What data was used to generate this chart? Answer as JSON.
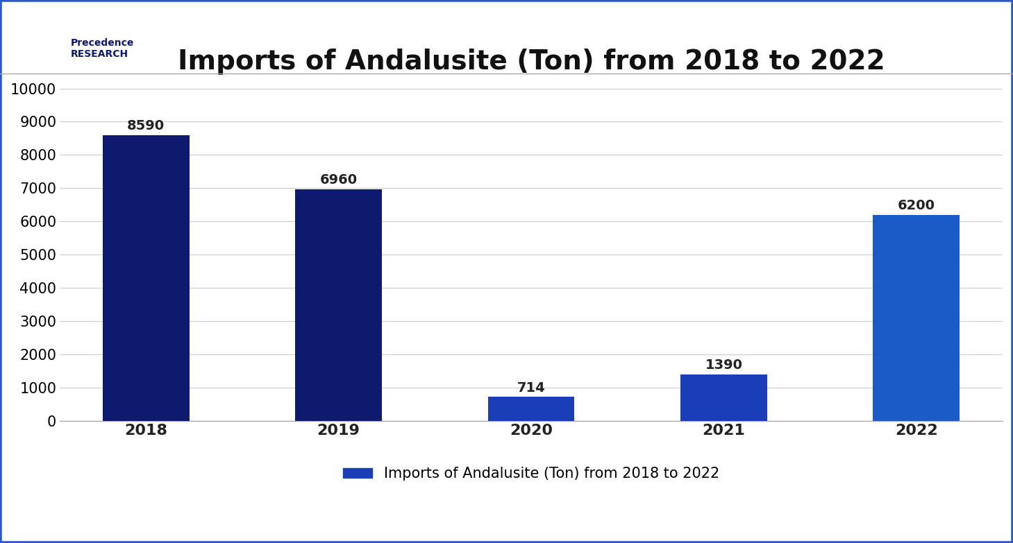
{
  "title": "Imports of Andalusite (Ton) from 2018 to 2022",
  "categories": [
    "2018",
    "2019",
    "2020",
    "2021",
    "2022"
  ],
  "values": [
    8590,
    6960,
    714,
    1390,
    6200
  ],
  "bar_colors": [
    "#0d1a6e",
    "#0d1a6e",
    "#1a3eb8",
    "#1a3eb8",
    "#1a5bc8"
  ],
  "bar_colors_detail": {
    "2018": "#0d1a6e",
    "2019": "#0d1a6e",
    "2020": "#2244bb",
    "2021": "#2244bb",
    "2022": "#2255cc"
  },
  "ylim": [
    0,
    10000
  ],
  "yticks": [
    0,
    1000,
    2000,
    3000,
    4000,
    5000,
    6000,
    7000,
    8000,
    9000,
    10000
  ],
  "background_color": "#ffffff",
  "title_fontsize": 28,
  "tick_fontsize": 15,
  "label_fontsize": 15,
  "annotation_fontsize": 14,
  "legend_label": "Imports of Andalusite (Ton) from 2018 to 2022",
  "legend_color": "#1a3eb8",
  "grid_color": "#cccccc",
  "border_color": "#2b5ac8"
}
